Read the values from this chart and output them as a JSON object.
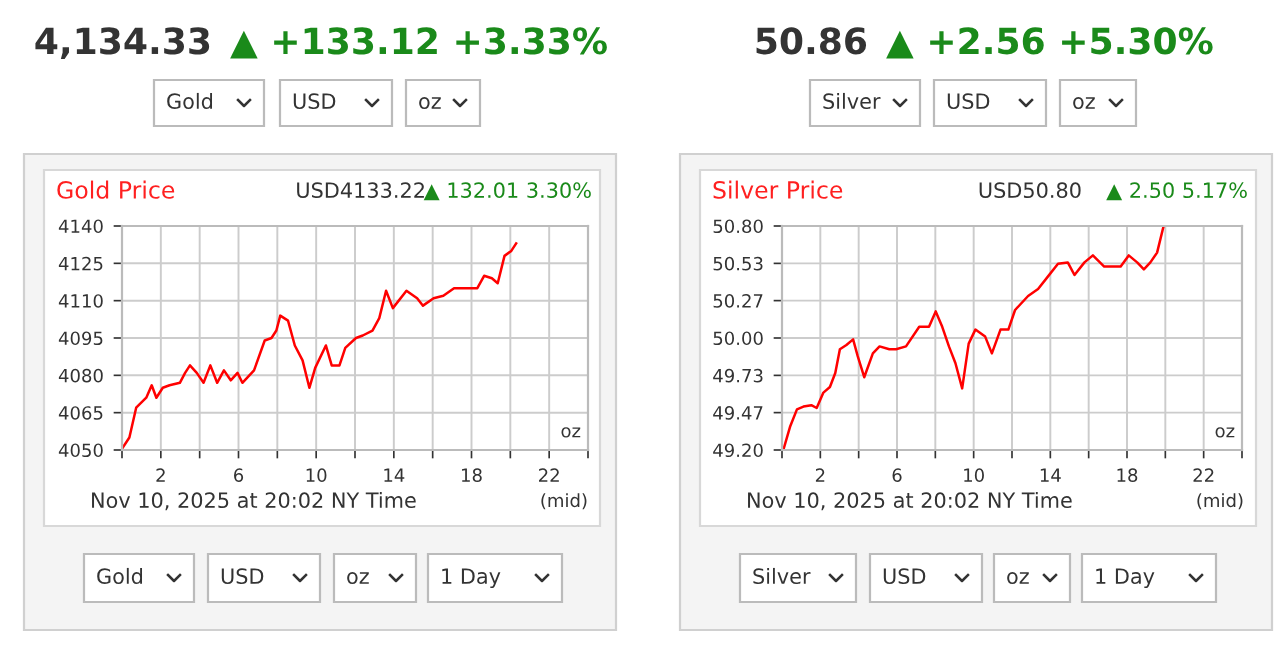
{
  "chart_data": [
    {
      "type": "line",
      "title": "Gold Price",
      "subtitle": "USD4133.22",
      "annotations": [
        "4,134.33",
        "▲ +133.12 +3.33%",
        "Gold",
        "USD",
        "oz",
        "▲ 132.01 3.30%",
        "oz",
        "Nov 10, 2025 at 20:02 NY Time",
        "(mid)",
        "Gold",
        "USD",
        "oz",
        "1 Day"
      ],
      "xlim": [
        0,
        24
      ],
      "xticks": [
        {
          "value": 0,
          "label": null
        },
        2,
        {
          "value": 4,
          "label": null
        },
        6,
        {
          "value": 8,
          "label": null
        },
        10,
        {
          "value": 12,
          "label": null
        },
        14,
        {
          "value": 16,
          "label": null
        },
        18,
        {
          "value": 20,
          "label": null
        },
        22,
        {
          "value": 24,
          "label": null
        }
      ],
      "ylim": [
        4050,
        4140
      ],
      "yticks": [
        4050,
        4065,
        4080,
        4095,
        4110,
        4125,
        4140
      ],
      "grid": true,
      "legend": false,
      "series": [
        {
          "color": "#ff0000",
          "x": [
            0,
            0.38,
            0.73,
            1.25,
            1.53,
            1.77,
            2.1,
            2.45,
            2.98,
            3.25,
            3.5,
            3.85,
            4.2,
            4.55,
            4.9,
            5.25,
            5.6,
            5.95,
            6.2,
            6.8,
            7.35,
            7.7,
            7.95,
            8.15,
            8.55,
            8.9,
            9.3,
            9.65,
            9.95,
            10.5,
            10.8,
            11.2,
            11.5,
            12.05,
            12.4,
            12.9,
            13.25,
            13.6,
            13.95,
            14.65,
            15.2,
            15.5,
            16.05,
            16.55,
            17.1,
            18.3,
            18.65,
            19.05,
            19.35,
            19.7,
            20.05,
            20.3
          ],
          "values": [
            4050.5,
            4055,
            4067,
            4071,
            4076,
            4071,
            4075,
            4076,
            4077,
            4081,
            4084,
            4081,
            4077,
            4084,
            4077,
            4082,
            4078,
            4081,
            4077,
            4082,
            4094,
            4095,
            4098,
            4104,
            4102,
            4092,
            4086,
            4075,
            4083,
            4092,
            4084,
            4084,
            4091,
            4095,
            4096,
            4098,
            4103,
            4114,
            4107,
            4114,
            4111,
            4108,
            4111,
            4112,
            4115,
            4115,
            4120,
            4119,
            4117,
            4128,
            4130,
            4133
          ]
        }
      ]
    },
    {
      "type": "line",
      "title": "Silver Price",
      "subtitle": "USD50.80",
      "annotations": [
        "50.86",
        "▲ +2.56 +5.30%",
        "Silver",
        "USD",
        "oz",
        "▲ 2.50 5.17%",
        "oz",
        "Nov 10, 2025 at 20:02 NY Time",
        "(mid)",
        "Silver",
        "USD",
        "oz",
        "1 Day"
      ],
      "xlim": [
        0,
        24
      ],
      "xticks": [
        {
          "value": 0,
          "label": null
        },
        2,
        {
          "value": 4,
          "label": null
        },
        6,
        {
          "value": 8,
          "label": null
        },
        10,
        {
          "value": 12,
          "label": null
        },
        14,
        {
          "value": 16,
          "label": null
        },
        18,
        {
          "value": 20,
          "label": null
        },
        22,
        {
          "value": 24,
          "label": null
        }
      ],
      "ylim": [
        49.2,
        50.8
      ],
      "yticks": [
        {
          "value": 49.2,
          "label": "49.20"
        },
        {
          "value": 49.467,
          "label": "49.47"
        },
        {
          "value": 49.733,
          "label": "49.73"
        },
        {
          "value": 50.0,
          "label": "50.00"
        },
        {
          "value": 50.267,
          "label": "50.27"
        },
        {
          "value": 50.533,
          "label": "50.53"
        },
        {
          "value": 50.8,
          "label": "50.80"
        }
      ],
      "grid": true,
      "legend": false,
      "series": [
        {
          "color": "#ff0000",
          "x": [
            0.09,
            0.43,
            0.78,
            1.12,
            1.53,
            1.81,
            2.16,
            2.5,
            2.78,
            3.02,
            3.36,
            3.71,
            3.95,
            4.29,
            4.74,
            5.09,
            5.6,
            5.95,
            6.47,
            7.16,
            7.67,
            8.02,
            8.36,
            8.71,
            9.05,
            9.4,
            9.74,
            10.09,
            10.6,
            10.95,
            11.4,
            11.81,
            12.16,
            12.84,
            13.36,
            13.88,
            14.4,
            14.91,
            15.26,
            15.78,
            16.22,
            16.81,
            17.67,
            18.09,
            18.53,
            18.88,
            19.22,
            19.57,
            19.91
          ],
          "values": [
            49.21,
            49.37,
            49.49,
            49.51,
            49.52,
            49.5,
            49.61,
            49.65,
            49.75,
            49.92,
            49.95,
            49.99,
            49.87,
            49.72,
            49.89,
            49.94,
            49.92,
            49.92,
            49.94,
            50.08,
            50.08,
            50.19,
            50.08,
            49.94,
            49.82,
            49.64,
            49.96,
            50.06,
            50.01,
            49.89,
            50.06,
            50.06,
            50.2,
            50.3,
            50.35,
            50.44,
            50.53,
            50.54,
            50.45,
            50.54,
            50.59,
            50.51,
            50.51,
            50.59,
            50.54,
            50.49,
            50.54,
            50.61,
            50.8
          ]
        }
      ]
    }
  ]
}
